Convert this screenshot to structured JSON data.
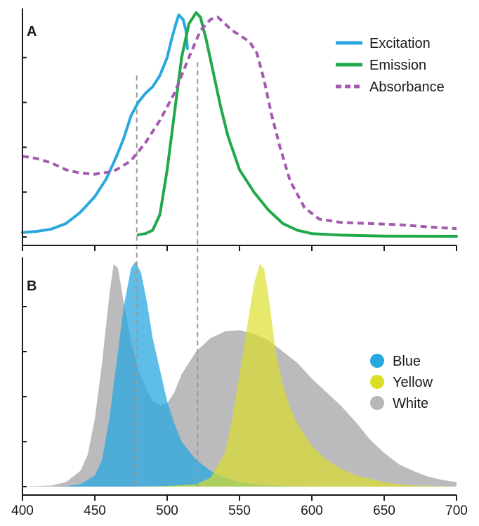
{
  "chart_data": [
    {
      "panel_label": "A",
      "type": "line",
      "xlim": [
        400,
        700
      ],
      "ylim": [
        0,
        1
      ],
      "series": [
        {
          "name": "Excitation",
          "color": "#29a8e0",
          "dash": "solid",
          "points": [
            [
              400,
              0.02
            ],
            [
              410,
              0.025
            ],
            [
              420,
              0.035
            ],
            [
              430,
              0.06
            ],
            [
              440,
              0.11
            ],
            [
              450,
              0.18
            ],
            [
              458,
              0.26
            ],
            [
              465,
              0.36
            ],
            [
              470,
              0.44
            ],
            [
              475,
              0.54
            ],
            [
              480,
              0.6
            ],
            [
              485,
              0.64
            ],
            [
              490,
              0.67
            ],
            [
              495,
              0.72
            ],
            [
              500,
              0.8
            ],
            [
              503,
              0.88
            ],
            [
              506,
              0.95
            ],
            [
              508,
              0.99
            ],
            [
              511,
              0.97
            ],
            [
              513,
              0.92
            ],
            [
              514,
              0.84
            ]
          ]
        },
        {
          "name": "Emission",
          "color": "#20a94b",
          "dash": "solid",
          "points": [
            [
              480,
              0.01
            ],
            [
              485,
              0.015
            ],
            [
              490,
              0.03
            ],
            [
              495,
              0.1
            ],
            [
              500,
              0.3
            ],
            [
              505,
              0.55
            ],
            [
              510,
              0.8
            ],
            [
              515,
              0.95
            ],
            [
              520,
              1.0
            ],
            [
              523,
              0.98
            ],
            [
              527,
              0.88
            ],
            [
              532,
              0.73
            ],
            [
              537,
              0.58
            ],
            [
              542,
              0.45
            ],
            [
              550,
              0.3
            ],
            [
              560,
              0.2
            ],
            [
              570,
              0.12
            ],
            [
              580,
              0.06
            ],
            [
              590,
              0.03
            ],
            [
              600,
              0.015
            ],
            [
              620,
              0.008
            ],
            [
              650,
              0.004
            ],
            [
              700,
              0.003
            ]
          ]
        },
        {
          "name": "Absorbance",
          "color": "#a45ab0",
          "dash": "dashed",
          "points": [
            [
              400,
              0.36
            ],
            [
              410,
              0.35
            ],
            [
              420,
              0.33
            ],
            [
              430,
              0.3
            ],
            [
              440,
              0.285
            ],
            [
              450,
              0.28
            ],
            [
              460,
              0.29
            ],
            [
              465,
              0.3
            ],
            [
              475,
              0.34
            ],
            [
              485,
              0.42
            ],
            [
              495,
              0.52
            ],
            [
              505,
              0.64
            ],
            [
              515,
              0.8
            ],
            [
              523,
              0.92
            ],
            [
              530,
              0.97
            ],
            [
              535,
              0.98
            ],
            [
              540,
              0.95
            ],
            [
              545,
              0.92
            ],
            [
              550,
              0.9
            ],
            [
              557,
              0.87
            ],
            [
              562,
              0.82
            ],
            [
              567,
              0.7
            ],
            [
              572,
              0.55
            ],
            [
              578,
              0.4
            ],
            [
              585,
              0.25
            ],
            [
              595,
              0.13
            ],
            [
              605,
              0.08
            ],
            [
              620,
              0.065
            ],
            [
              640,
              0.06
            ],
            [
              660,
              0.055
            ],
            [
              680,
              0.045
            ],
            [
              700,
              0.037
            ]
          ]
        }
      ],
      "annotations": [
        {
          "type": "vline",
          "x": 479,
          "y_top": 0.72
        },
        {
          "type": "vline",
          "x": 521,
          "y_top": 0.78
        }
      ]
    },
    {
      "panel_label": "B",
      "type": "area",
      "xlim": [
        400,
        700
      ],
      "ylim": [
        0,
        1
      ],
      "series": [
        {
          "name": "White",
          "color": "#b7b7b9",
          "points": [
            [
              400,
              0
            ],
            [
              420,
              0.005
            ],
            [
              430,
              0.02
            ],
            [
              440,
              0.07
            ],
            [
              445,
              0.14
            ],
            [
              450,
              0.3
            ],
            [
              455,
              0.55
            ],
            [
              460,
              0.85
            ],
            [
              463,
              0.99
            ],
            [
              466,
              0.97
            ],
            [
              470,
              0.82
            ],
            [
              475,
              0.65
            ],
            [
              480,
              0.52
            ],
            [
              485,
              0.44
            ],
            [
              490,
              0.38
            ],
            [
              495,
              0.36
            ],
            [
              500,
              0.37
            ],
            [
              505,
              0.42
            ],
            [
              510,
              0.5
            ],
            [
              520,
              0.6
            ],
            [
              530,
              0.66
            ],
            [
              540,
              0.69
            ],
            [
              550,
              0.695
            ],
            [
              560,
              0.68
            ],
            [
              570,
              0.65
            ],
            [
              580,
              0.6
            ],
            [
              590,
              0.55
            ],
            [
              600,
              0.48
            ],
            [
              610,
              0.42
            ],
            [
              620,
              0.36
            ],
            [
              630,
              0.29
            ],
            [
              640,
              0.21
            ],
            [
              650,
              0.15
            ],
            [
              660,
              0.1
            ],
            [
              670,
              0.07
            ],
            [
              680,
              0.045
            ],
            [
              690,
              0.03
            ],
            [
              700,
              0.02
            ]
          ]
        },
        {
          "name": "Blue",
          "color": "#29a8e0",
          "points": [
            [
              420,
              0
            ],
            [
              430,
              0.002
            ],
            [
              440,
              0.01
            ],
            [
              450,
              0.05
            ],
            [
              455,
              0.12
            ],
            [
              460,
              0.3
            ],
            [
              465,
              0.55
            ],
            [
              470,
              0.8
            ],
            [
              475,
              0.97
            ],
            [
              478,
              1.0
            ],
            [
              482,
              0.95
            ],
            [
              486,
              0.82
            ],
            [
              490,
              0.66
            ],
            [
              495,
              0.52
            ],
            [
              500,
              0.38
            ],
            [
              505,
              0.28
            ],
            [
              510,
              0.2
            ],
            [
              520,
              0.12
            ],
            [
              530,
              0.07
            ],
            [
              540,
              0.04
            ],
            [
              550,
              0.02
            ],
            [
              560,
              0.01
            ],
            [
              580,
              0.003
            ],
            [
              600,
              0
            ]
          ]
        },
        {
          "name": "Yellow",
          "color": "#dadf26",
          "points": [
            [
              480,
              0
            ],
            [
              500,
              0.003
            ],
            [
              520,
              0.01
            ],
            [
              530,
              0.04
            ],
            [
              540,
              0.15
            ],
            [
              545,
              0.3
            ],
            [
              550,
              0.5
            ],
            [
              555,
              0.7
            ],
            [
              560,
              0.9
            ],
            [
              564,
              0.99
            ],
            [
              567,
              0.97
            ],
            [
              570,
              0.85
            ],
            [
              575,
              0.6
            ],
            [
              580,
              0.45
            ],
            [
              585,
              0.35
            ],
            [
              590,
              0.28
            ],
            [
              600,
              0.18
            ],
            [
              610,
              0.12
            ],
            [
              620,
              0.08
            ],
            [
              630,
              0.05
            ],
            [
              640,
              0.035
            ],
            [
              650,
              0.02
            ],
            [
              660,
              0.01
            ],
            [
              670,
              0.005
            ],
            [
              700,
              0
            ]
          ]
        }
      ],
      "annotations": [
        {
          "type": "vline",
          "x": 479,
          "y_top": 1.0
        },
        {
          "type": "vline",
          "x": 521,
          "y_top": 1.0
        }
      ]
    }
  ],
  "x_axis": {
    "ticks": [
      400,
      450,
      500,
      550,
      600,
      650,
      700
    ],
    "tick_labels": [
      "400",
      "450",
      "500",
      "550",
      "600",
      "650",
      "700"
    ]
  },
  "legends": {
    "A": [
      {
        "label": "Excitation",
        "color": "#29a8e0",
        "style": "solid"
      },
      {
        "label": "Emission",
        "color": "#20a94b",
        "style": "solid"
      },
      {
        "label": "Absorbance",
        "color": "#a45ab0",
        "style": "dashed"
      }
    ],
    "B": [
      {
        "label": "Blue",
        "color": "#29a8e0"
      },
      {
        "label": "Yellow",
        "color": "#dadf26"
      },
      {
        "label": "White",
        "color": "#b7b7b9"
      }
    ]
  },
  "panel_labels": {
    "A": "A",
    "B": "B"
  }
}
